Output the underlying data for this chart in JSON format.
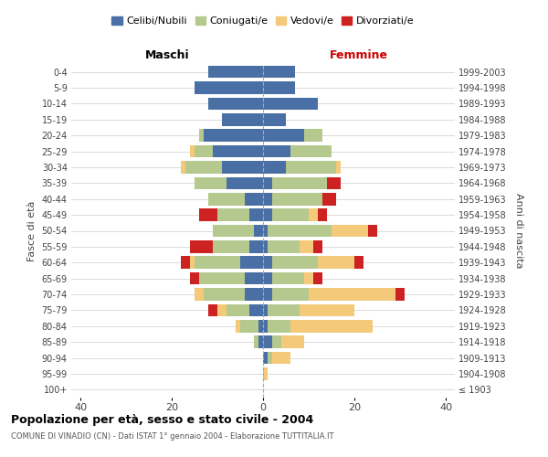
{
  "age_groups": [
    "100+",
    "95-99",
    "90-94",
    "85-89",
    "80-84",
    "75-79",
    "70-74",
    "65-69",
    "60-64",
    "55-59",
    "50-54",
    "45-49",
    "40-44",
    "35-39",
    "30-34",
    "25-29",
    "20-24",
    "15-19",
    "10-14",
    "5-9",
    "0-4"
  ],
  "birth_years": [
    "≤ 1903",
    "1904-1908",
    "1909-1913",
    "1914-1918",
    "1919-1923",
    "1924-1928",
    "1929-1933",
    "1934-1938",
    "1939-1943",
    "1944-1948",
    "1949-1953",
    "1954-1958",
    "1959-1963",
    "1964-1968",
    "1969-1973",
    "1974-1978",
    "1979-1983",
    "1984-1988",
    "1989-1993",
    "1994-1998",
    "1999-2003"
  ],
  "maschi_celibi": [
    0,
    0,
    0,
    1,
    1,
    3,
    4,
    4,
    5,
    3,
    2,
    3,
    4,
    8,
    9,
    11,
    13,
    9,
    12,
    15,
    12
  ],
  "maschi_coniugati": [
    0,
    0,
    0,
    1,
    4,
    5,
    9,
    10,
    10,
    8,
    9,
    7,
    8,
    7,
    8,
    4,
    1,
    0,
    0,
    0,
    0
  ],
  "maschi_vedovi": [
    0,
    0,
    0,
    0,
    1,
    2,
    2,
    0,
    1,
    0,
    0,
    0,
    0,
    0,
    1,
    1,
    0,
    0,
    0,
    0,
    0
  ],
  "maschi_divorziati": [
    0,
    0,
    0,
    0,
    0,
    2,
    0,
    2,
    2,
    5,
    0,
    4,
    0,
    0,
    0,
    0,
    0,
    0,
    0,
    0,
    0
  ],
  "femmine_nubili": [
    0,
    0,
    1,
    2,
    1,
    1,
    2,
    2,
    2,
    1,
    1,
    2,
    2,
    2,
    5,
    6,
    9,
    5,
    12,
    7,
    7
  ],
  "femmine_coniugate": [
    0,
    0,
    1,
    2,
    5,
    7,
    8,
    7,
    10,
    7,
    14,
    8,
    11,
    12,
    11,
    9,
    4,
    0,
    0,
    0,
    0
  ],
  "femmine_vedove": [
    0,
    1,
    4,
    5,
    18,
    12,
    19,
    2,
    8,
    3,
    8,
    2,
    0,
    0,
    1,
    0,
    0,
    0,
    0,
    0,
    0
  ],
  "femmine_divorziate": [
    0,
    0,
    0,
    0,
    0,
    0,
    2,
    2,
    2,
    2,
    2,
    2,
    3,
    3,
    0,
    0,
    0,
    0,
    0,
    0,
    0
  ],
  "color_celibi": "#4a6fa5",
  "color_coniugati": "#b5c98e",
  "color_vedovi": "#f5c97a",
  "color_divorziati": "#cc2222",
  "xlim": 42,
  "title": "Popolazione per età, sesso e stato civile - 2004",
  "subtitle": "COMUNE DI VINADIO (CN) - Dati ISTAT 1° gennaio 2004 - Elaborazione TUTTITALIA.IT",
  "ylabel_left": "Fasce di età",
  "ylabel_right": "Anni di nascita",
  "legend_labels": [
    "Celibi/Nubili",
    "Coniugati/e",
    "Vedovi/e",
    "Divorziati/e"
  ],
  "header_maschi": "Maschi",
  "header_femmine": "Femmine",
  "background_color": "#ffffff",
  "grid_color": "#cccccc"
}
